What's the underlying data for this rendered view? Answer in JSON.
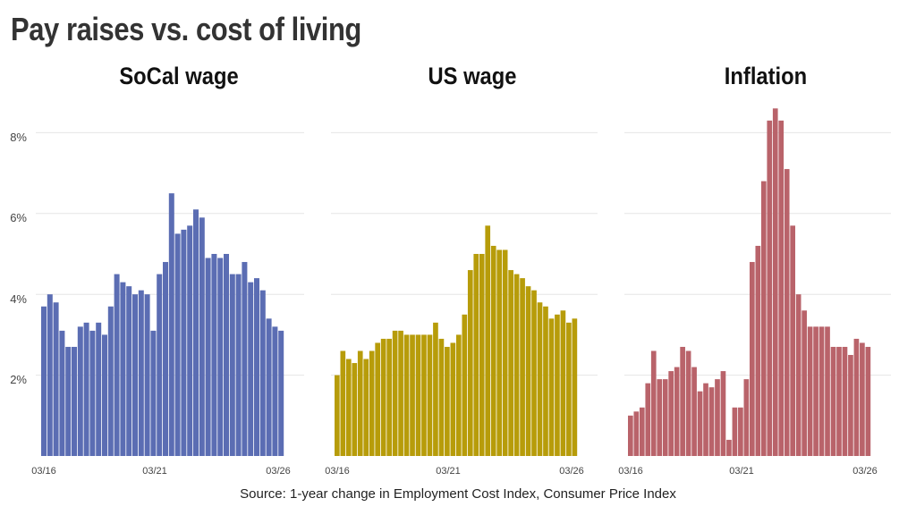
{
  "title": "Pay raises vs. cost of living",
  "source": "Source: 1-year change in Employment Cost Index, Consumer Price Index",
  "y_ticks": [
    "2%",
    "4%",
    "6%",
    "8%"
  ],
  "chart_data": [
    {
      "type": "bar",
      "title": "SoCal wage",
      "color": "#5b6db3",
      "ylim": [
        0,
        9
      ],
      "x_tick_labels": [
        "03/16",
        "03/21",
        "03/26"
      ],
      "values": [
        3.7,
        4.0,
        3.8,
        3.1,
        2.7,
        2.7,
        3.2,
        3.3,
        3.1,
        3.3,
        3.0,
        3.7,
        4.5,
        4.3,
        4.2,
        4.0,
        4.1,
        4.0,
        3.1,
        4.5,
        4.8,
        6.5,
        5.5,
        5.6,
        5.7,
        6.1,
        5.9,
        4.9,
        5.0,
        4.9,
        5.0,
        4.5,
        4.5,
        4.8,
        4.3,
        4.4,
        4.1,
        3.4,
        3.2,
        3.1
      ]
    },
    {
      "type": "bar",
      "title": "US wage",
      "color": "#b79c0a",
      "ylim": [
        0,
        9
      ],
      "x_tick_labels": [
        "03/16",
        "03/21",
        "03/26"
      ],
      "values": [
        2.0,
        2.6,
        2.4,
        2.3,
        2.6,
        2.4,
        2.6,
        2.8,
        2.9,
        2.9,
        3.1,
        3.1,
        3.0,
        3.0,
        3.0,
        3.0,
        3.0,
        3.3,
        2.9,
        2.7,
        2.8,
        3.0,
        3.5,
        4.6,
        5.0,
        5.0,
        5.7,
        5.2,
        5.1,
        5.1,
        4.6,
        4.5,
        4.4,
        4.2,
        4.1,
        3.8,
        3.7,
        3.4,
        3.5,
        3.6,
        3.3,
        3.4
      ]
    },
    {
      "type": "bar",
      "title": "Inflation",
      "color": "#b9636a",
      "ylim": [
        0,
        9
      ],
      "x_tick_labels": [
        "03/16",
        "03/21",
        "03/26"
      ],
      "values": [
        1.0,
        1.1,
        1.2,
        1.8,
        2.6,
        1.9,
        1.9,
        2.1,
        2.2,
        2.7,
        2.6,
        2.2,
        1.6,
        1.8,
        1.7,
        1.9,
        2.1,
        0.4,
        1.2,
        1.2,
        1.9,
        4.8,
        5.2,
        6.8,
        8.3,
        8.6,
        8.3,
        7.1,
        5.7,
        4.0,
        3.6,
        3.2,
        3.2,
        3.2,
        3.2,
        2.7,
        2.7,
        2.7,
        2.5,
        2.9,
        2.8,
        2.7
      ]
    }
  ]
}
